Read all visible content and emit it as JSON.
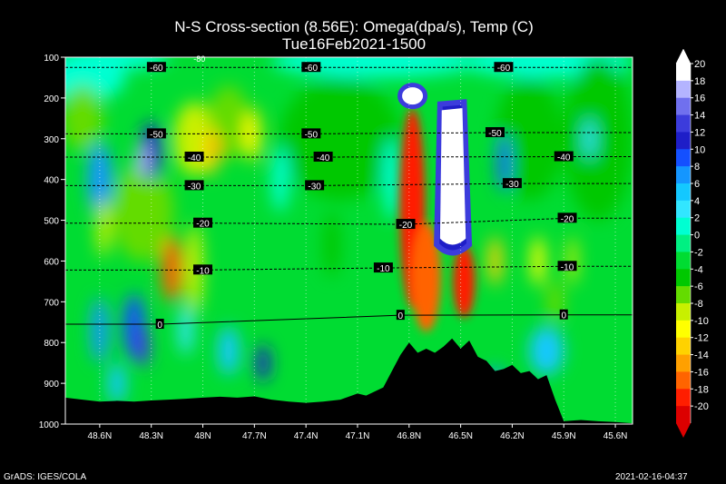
{
  "header": {
    "title": "N-S Cross-section (8.56E): Omega(dpa/s), Temp (C)",
    "subtitle": "Tue16Feb2021-1500"
  },
  "footer": {
    "left": "GrADS: IGES/COLA",
    "right": "2021-02-16-04:37"
  },
  "chart_data": {
    "type": "heatmap",
    "title": "N-S Cross-section (8.56E): Omega(dpa/s), Temp (C)",
    "subtitle": "Tue16Feb2021-1500",
    "x_axis": {
      "ticks": [
        "48.6N",
        "48.3N",
        "48N",
        "47.7N",
        "47.4N",
        "47.1N",
        "46.8N",
        "46.5N",
        "46.2N",
        "45.9N",
        "45.6N"
      ],
      "range": [
        48.8,
        45.5
      ]
    },
    "y_axis": {
      "ticks": [
        "100",
        "200",
        "300",
        "400",
        "500",
        "600",
        "700",
        "800",
        "900",
        "1000"
      ],
      "range": [
        100,
        1000
      ],
      "inverted": true
    },
    "colorbar": {
      "labels": [
        "20",
        "18",
        "16",
        "14",
        "12",
        "10",
        "8",
        "6",
        "4",
        "2",
        "0",
        "-2",
        "-4",
        "-6",
        "-8",
        "-10",
        "-12",
        "-14",
        "-16",
        "-18",
        "-20"
      ],
      "colors": [
        "#ffffff",
        "#b4b4ff",
        "#7070ee",
        "#3c3cdc",
        "#1e1ec8",
        "#1450ff",
        "#1496ff",
        "#14c8ff",
        "#32e6ff",
        "#00ffd2",
        "#00f082",
        "#00dc32",
        "#00c800",
        "#64dc00",
        "#c8f000",
        "#ffff00",
        "#ffd200",
        "#ffa000",
        "#ff6400",
        "#ff1e00",
        "#dc0000"
      ]
    },
    "temperature_contours": [
      {
        "value": -60,
        "labels": [
          {
            "text": "-60",
            "lat": 48.27,
            "p": 125
          },
          {
            "text": "-60",
            "lat": 47.37,
            "p": 125
          },
          {
            "text": "-60",
            "lat": 46.25,
            "p": 125
          }
        ]
      },
      {
        "value": -50,
        "labels": [
          {
            "text": "-50",
            "lat": 48.27,
            "p": 288
          },
          {
            "text": "-50",
            "lat": 47.37,
            "p": 288
          },
          {
            "text": "-50",
            "lat": 46.3,
            "p": 285
          }
        ]
      },
      {
        "value": -40,
        "labels": [
          {
            "text": "-40",
            "lat": 48.05,
            "p": 345
          },
          {
            "text": "-40",
            "lat": 47.3,
            "p": 345
          },
          {
            "text": "-40",
            "lat": 45.9,
            "p": 344
          }
        ]
      },
      {
        "value": -30,
        "labels": [
          {
            "text": "-30",
            "lat": 48.05,
            "p": 415
          },
          {
            "text": "-30",
            "lat": 47.35,
            "p": 415
          },
          {
            "text": "-30",
            "lat": 46.2,
            "p": 410
          }
        ]
      },
      {
        "value": -20,
        "labels": [
          {
            "text": "-20",
            "lat": 48.0,
            "p": 507
          },
          {
            "text": "-20",
            "lat": 46.82,
            "p": 510
          },
          {
            "text": "-20",
            "lat": 45.88,
            "p": 495
          }
        ]
      },
      {
        "value": -10,
        "labels": [
          {
            "text": "-10",
            "lat": 48.0,
            "p": 622
          },
          {
            "text": "-10",
            "lat": 46.95,
            "p": 617
          },
          {
            "text": "-10",
            "lat": 45.88,
            "p": 613
          }
        ]
      },
      {
        "value": 0,
        "labels": [
          {
            "text": "0",
            "lat": 48.25,
            "p": 755
          },
          {
            "text": "0",
            "lat": 46.85,
            "p": 733
          },
          {
            "text": "0",
            "lat": 45.9,
            "p": 732
          }
        ]
      }
    ],
    "label_top": "-80",
    "terrain": "Alps orography (black fill) peaking near 46.6N"
  }
}
